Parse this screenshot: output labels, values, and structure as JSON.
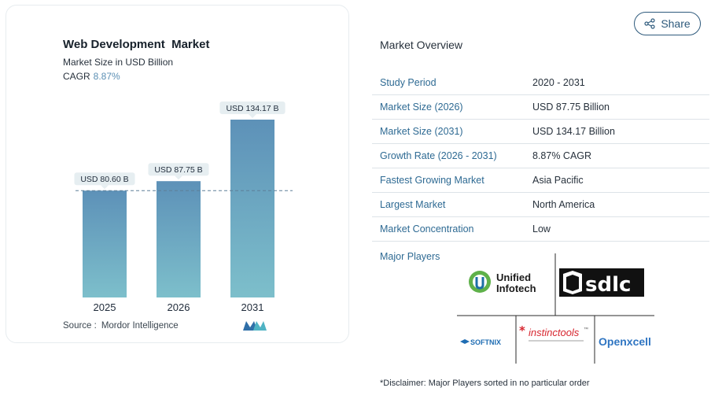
{
  "chart_data": {
    "type": "bar",
    "title": "Web Development  Market",
    "subtitle": "Market Size in USD Billion",
    "cagr_label": "CAGR",
    "cagr_value": "8.87%",
    "categories": [
      "2025",
      "2026",
      "2031"
    ],
    "values": [
      80.6,
      87.75,
      134.17
    ],
    "data_labels": [
      "USD 80.60 B",
      "USD 87.75 B",
      "USD 134.17 B"
    ],
    "reference_line": 80.6,
    "ylim": [
      0,
      134.17
    ],
    "grid": false,
    "colors": {
      "bar_top": "#5d91b8",
      "bar_bottom": "#7dbfcb",
      "label_bg": "#e6eef1",
      "dashed_line": "#5d7f98"
    }
  },
  "source": {
    "label": "Source :",
    "value": "Mordor Intelligence"
  },
  "share_button": {
    "label": "Share",
    "icon": "share-icon"
  },
  "overview": {
    "title": "Market Overview",
    "rows": [
      {
        "key": "Study Period",
        "value": "2020 - 2031"
      },
      {
        "key": "Market Size (2026)",
        "value": "USD 87.75 Billion"
      },
      {
        "key": "Market Size (2031)",
        "value": "USD 134.17 Billion"
      },
      {
        "key": "Growth Rate (2026 - 2031)",
        "value": "8.87% CAGR"
      },
      {
        "key": "Fastest Growing Market",
        "value": "Asia Pacific"
      },
      {
        "key": "Largest Market",
        "value": "North America"
      },
      {
        "key": "Market Concentration",
        "value": "Low"
      }
    ]
  },
  "players": {
    "title": "Major Players",
    "logos": {
      "unified_line1": "Unified",
      "unified_line2": "Infotech",
      "sdlc": "sdlc",
      "softnix": "SOFTNIX",
      "instinctools": "instinctools",
      "instinctools_tm": "™",
      "openxcell": "Openxcell"
    }
  },
  "disclaimer": "*Disclaimer: Major Players sorted in no particular order"
}
